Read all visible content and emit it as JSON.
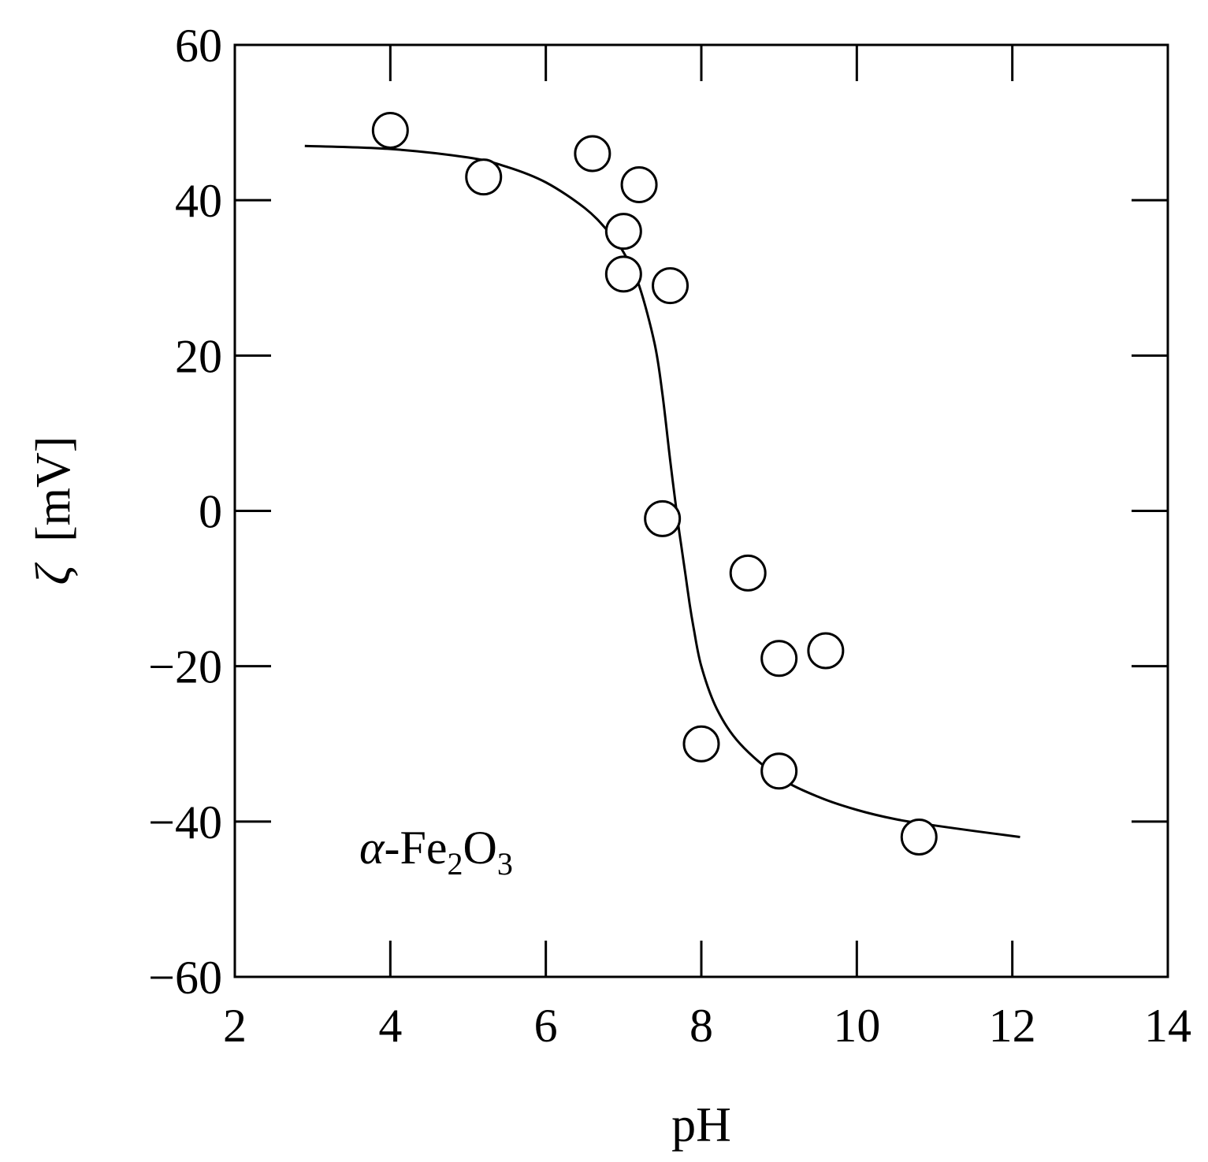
{
  "chart_data": {
    "type": "scatter",
    "xlabel": "pH",
    "ylabel": "[mV]",
    "ylabel_symbol": "ζ",
    "xlim": [
      2,
      14
    ],
    "ylim": [
      -60,
      60
    ],
    "xticks": [
      2,
      4,
      6,
      8,
      10,
      12,
      14
    ],
    "yticks": [
      -60,
      -40,
      -20,
      0,
      20,
      40,
      60
    ],
    "xtick_labels": [
      "2",
      "4",
      "6",
      "8",
      "10",
      "12",
      "14"
    ],
    "ytick_labels": [
      "−60",
      "−40",
      "−20",
      "0",
      "20",
      "40",
      "60"
    ],
    "grid": false,
    "series": [
      {
        "marker": "open-circle",
        "x": [
          4.0,
          5.2,
          6.6,
          7.2,
          7.0,
          7.0,
          7.6,
          7.5,
          8.6,
          9.0,
          9.6,
          8.0,
          9.0,
          10.8
        ],
        "y": [
          49,
          43,
          46,
          42,
          36,
          30.5,
          29,
          -1,
          -8,
          -19,
          -18,
          -30,
          -33.5,
          -42
        ]
      },
      {
        "marker": "none",
        "line": "solid",
        "x": [
          2.9,
          4.0,
          5.0,
          5.5,
          6.0,
          6.5,
          6.8,
          7.0,
          7.2,
          7.4,
          7.5,
          7.6,
          7.7,
          7.75,
          7.8,
          7.85,
          7.9,
          8.0,
          8.2,
          8.5,
          9.0,
          9.5,
          10.0,
          10.5,
          11.0,
          11.5,
          12.1
        ],
        "y": [
          47.0,
          46.6,
          45.5,
          44.3,
          42.3,
          39.0,
          36.0,
          33.3,
          29.0,
          21.5,
          15.0,
          6.5,
          -1.5,
          -5.0,
          -8.5,
          -12.0,
          -15.0,
          -20.0,
          -25.5,
          -30.0,
          -34.3,
          -36.8,
          -38.5,
          -39.7,
          -40.5,
          -41.2,
          -42.0
        ]
      }
    ],
    "annotations": [
      {
        "prefix": "α",
        "text": "-Fe",
        "sub1": "2",
        "mid": "O",
        "sub2": "3",
        "x": 3.6,
        "y": -45
      }
    ]
  }
}
